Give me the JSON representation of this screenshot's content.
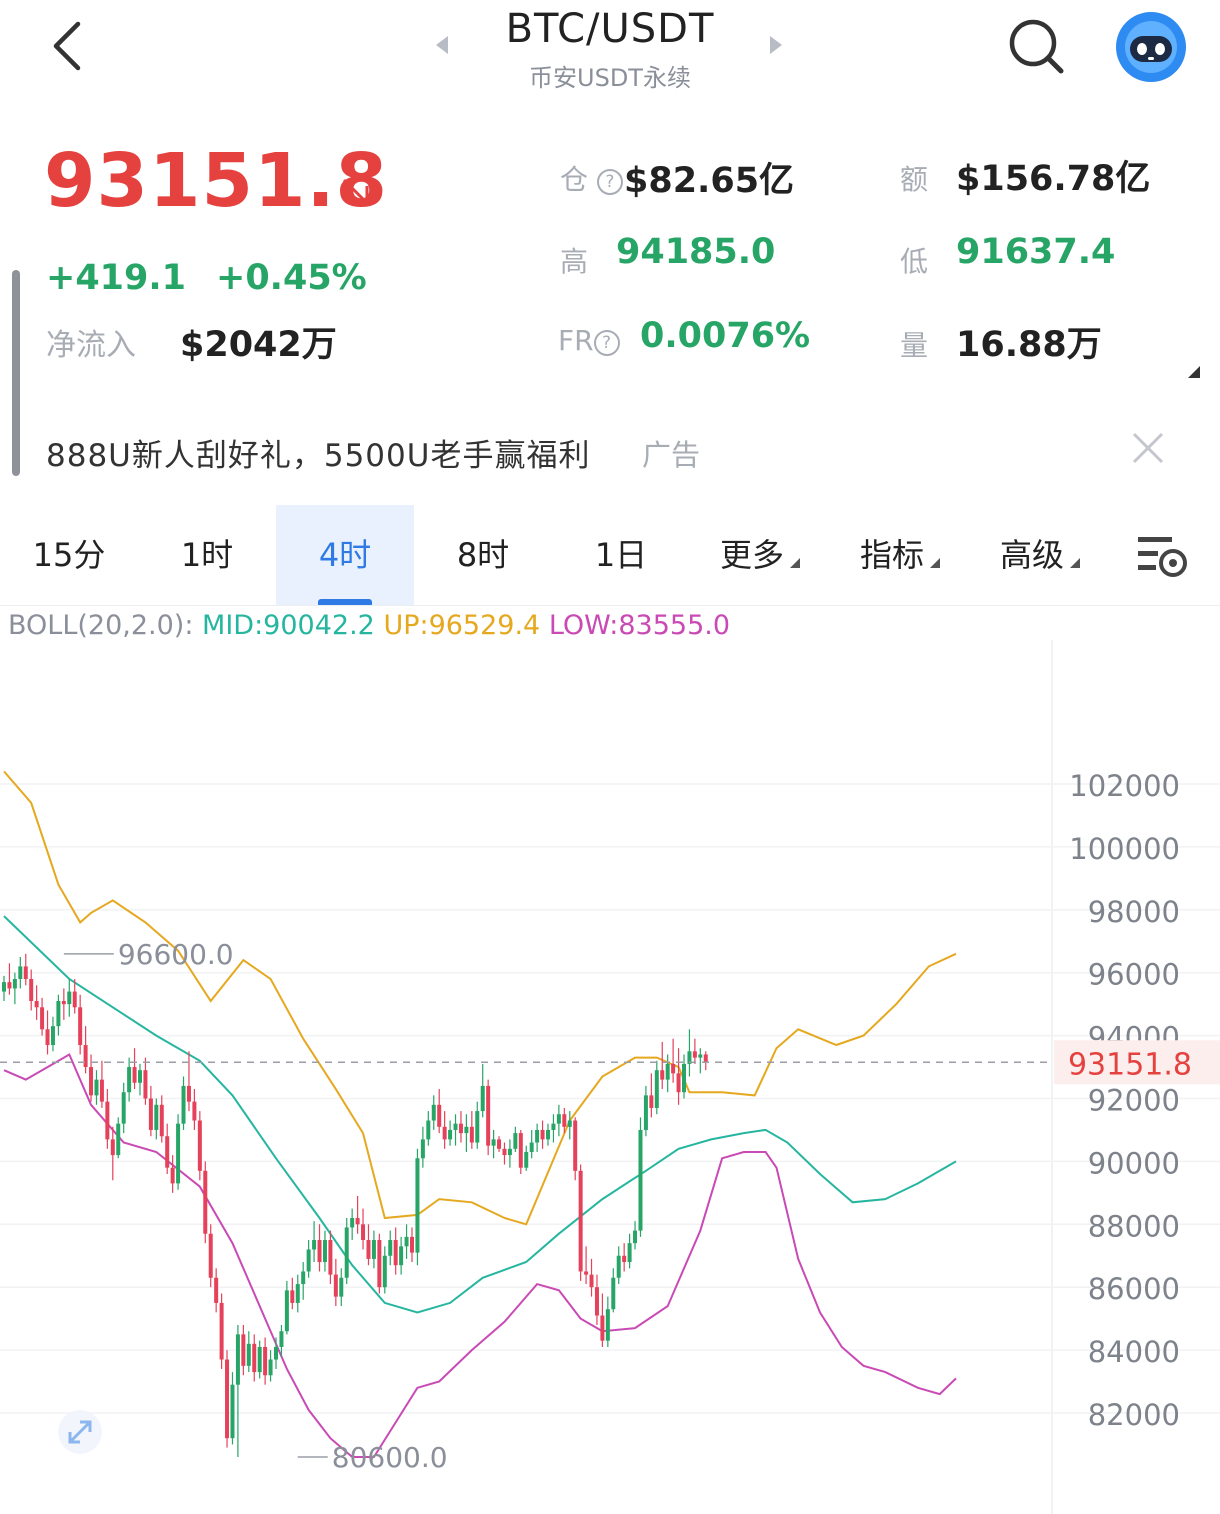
{
  "header": {
    "title": "BTC/USDT",
    "subtitle": "币安USDT永续"
  },
  "ticker": {
    "price": "93151.8",
    "price_direction_icon": "arrow-down-right-icon",
    "change": "+419.1",
    "change_pct": "+0.45%",
    "net_inflow_label": "净流入",
    "net_inflow_value": "$2042万"
  },
  "stats": {
    "open_interest_label": "仓",
    "open_interest_value": "$82.65亿",
    "turnover_label": "额",
    "turnover_value": "$156.78亿",
    "high_label": "高",
    "high_value": "94185.0",
    "low_label": "低",
    "low_value": "91637.4",
    "fr_label": "FR",
    "fr_value": "0.0076%",
    "volume_label": "量",
    "volume_value": "16.88万"
  },
  "ad": {
    "text": "888U新人刮好礼，5500U老手赢福利",
    "tag": "广告"
  },
  "tabs": [
    {
      "label": "15分",
      "active": false
    },
    {
      "label": "1时",
      "active": false
    },
    {
      "label": "4时",
      "active": true
    },
    {
      "label": "8时",
      "active": false
    },
    {
      "label": "1日",
      "active": false
    },
    {
      "label": "更多",
      "active": false
    },
    {
      "label": "指标",
      "active": false
    },
    {
      "label": "高级",
      "active": false
    }
  ],
  "indicator": {
    "name": "BOLL(20,2.0):",
    "mid": "MID:90042.2",
    "up": "UP:96529.4",
    "low": "LOW:83555.0"
  },
  "colors": {
    "up_candle": "#27a567",
    "down_candle": "#e5415a",
    "boll_mid": "#26b6a0",
    "boll_up": "#e5a81e",
    "boll_low": "#c94ab5",
    "price_red": "#e5413f"
  },
  "chart_data": {
    "type": "candlestick",
    "y_ticks": [
      "102000",
      "100000",
      "98000",
      "96000",
      "94000",
      "92000",
      "90000",
      "88000",
      "86000",
      "84000",
      "82000"
    ],
    "ylim": [
      80000,
      104000
    ],
    "current_price_label": "93151.8",
    "current_price": 93151.8,
    "high_marker": {
      "label": "96600.0",
      "value": 96600
    },
    "low_marker": {
      "label": "80600.0",
      "value": 80600
    },
    "candles": [
      [
        95400,
        95900,
        95100,
        95700
      ],
      [
        95700,
        96300,
        95300,
        95500
      ],
      [
        95500,
        96000,
        95000,
        95800
      ],
      [
        95800,
        96500,
        95500,
        96200
      ],
      [
        96200,
        96600,
        95600,
        95800
      ],
      [
        95800,
        96100,
        94800,
        95100
      ],
      [
        95100,
        95600,
        94500,
        94900
      ],
      [
        94900,
        95200,
        94000,
        94200
      ],
      [
        94200,
        94800,
        93400,
        93700
      ],
      [
        93700,
        94600,
        93500,
        94300
      ],
      [
        94300,
        95300,
        94000,
        95100
      ],
      [
        95100,
        95500,
        94500,
        95000
      ],
      [
        95000,
        95800,
        94600,
        95400
      ],
      [
        95400,
        95800,
        94700,
        94900
      ],
      [
        94900,
        95300,
        93400,
        93700
      ],
      [
        93700,
        94300,
        92800,
        93000
      ],
      [
        93000,
        93400,
        91900,
        92100
      ],
      [
        92100,
        92900,
        91800,
        92600
      ],
      [
        92600,
        93200,
        91700,
        91900
      ],
      [
        91900,
        92300,
        90400,
        90700
      ],
      [
        90700,
        91100,
        89400,
        90200
      ],
      [
        90200,
        91400,
        90100,
        91200
      ],
      [
        91200,
        92500,
        90900,
        92200
      ],
      [
        92200,
        93300,
        91900,
        93000
      ],
      [
        93000,
        93600,
        92300,
        92500
      ],
      [
        92500,
        93100,
        92100,
        92900
      ],
      [
        92900,
        93300,
        91800,
        92000
      ],
      [
        92000,
        92400,
        90800,
        91000
      ],
      [
        91000,
        92000,
        90700,
        91800
      ],
      [
        91800,
        92100,
        90600,
        90800
      ],
      [
        90800,
        91200,
        89600,
        89800
      ],
      [
        89800,
        90200,
        89000,
        89300
      ],
      [
        89300,
        91500,
        89100,
        91200
      ],
      [
        91200,
        92700,
        91000,
        92400
      ],
      [
        92400,
        93500,
        91600,
        91900
      ],
      [
        91900,
        92300,
        91000,
        91300
      ],
      [
        91300,
        91600,
        89400,
        89700
      ],
      [
        89700,
        90000,
        87400,
        87700
      ],
      [
        87700,
        88000,
        86000,
        86300
      ],
      [
        86300,
        86600,
        85200,
        85500
      ],
      [
        85500,
        85800,
        83400,
        83700
      ],
      [
        83700,
        84000,
        80900,
        81200
      ],
      [
        81200,
        83300,
        81000,
        82900
      ],
      [
        82900,
        84800,
        80600,
        84500
      ],
      [
        84500,
        84800,
        83200,
        83500
      ],
      [
        83500,
        84600,
        83300,
        84200
      ],
      [
        84200,
        84500,
        83000,
        83300
      ],
      [
        83300,
        84300,
        83100,
        84100
      ],
      [
        84100,
        84400,
        82900,
        83200
      ],
      [
        83200,
        84000,
        83000,
        83700
      ],
      [
        83700,
        84400,
        83400,
        84100
      ],
      [
        84100,
        84800,
        83800,
        84600
      ],
      [
        84600,
        86200,
        84500,
        85900
      ],
      [
        85900,
        86300,
        85300,
        85500
      ],
      [
        85500,
        86400,
        85200,
        86100
      ],
      [
        86100,
        86800,
        85600,
        86500
      ],
      [
        86500,
        87500,
        86300,
        87200
      ],
      [
        87200,
        88100,
        86800,
        87500
      ],
      [
        87500,
        88000,
        86500,
        86800
      ],
      [
        86800,
        87800,
        86500,
        87500
      ],
      [
        87500,
        87800,
        86100,
        86400
      ],
      [
        86400,
        86900,
        85400,
        85700
      ],
      [
        85700,
        86600,
        85400,
        86300
      ],
      [
        86300,
        88200,
        86100,
        87900
      ],
      [
        87900,
        88500,
        87500,
        88200
      ],
      [
        88200,
        88900,
        87700,
        88000
      ],
      [
        88000,
        88500,
        87200,
        87500
      ],
      [
        87500,
        88000,
        86700,
        86900
      ],
      [
        86900,
        87800,
        86600,
        87500
      ],
      [
        87500,
        87700,
        85800,
        86000
      ],
      [
        86000,
        87300,
        85800,
        87000
      ],
      [
        87000,
        87800,
        86700,
        87500
      ],
      [
        87500,
        87900,
        86400,
        86700
      ],
      [
        86700,
        87600,
        86400,
        87300
      ],
      [
        87300,
        88000,
        86900,
        87600
      ],
      [
        87600,
        87900,
        86800,
        87100
      ],
      [
        87100,
        90400,
        86700,
        90100
      ],
      [
        90100,
        91100,
        89800,
        90700
      ],
      [
        90700,
        91600,
        90500,
        91300
      ],
      [
        91300,
        92100,
        91000,
        91800
      ],
      [
        91800,
        92300,
        90900,
        91100
      ],
      [
        91100,
        91600,
        90400,
        90700
      ],
      [
        90700,
        91300,
        90500,
        91000
      ],
      [
        91000,
        91500,
        90500,
        91200
      ],
      [
        91200,
        91600,
        90600,
        90900
      ],
      [
        90900,
        91500,
        90300,
        91100
      ],
      [
        91100,
        91600,
        90400,
        90600
      ],
      [
        90600,
        91900,
        90400,
        91600
      ],
      [
        91600,
        93100,
        91400,
        92400
      ],
      [
        92400,
        92600,
        90200,
        90500
      ],
      [
        90500,
        91000,
        90100,
        90700
      ],
      [
        90700,
        90800,
        90300,
        90400
      ],
      [
        90400,
        90600,
        89900,
        90200
      ],
      [
        90200,
        90700,
        89800,
        90400
      ],
      [
        90400,
        91100,
        90300,
        90900
      ],
      [
        90900,
        91000,
        89600,
        89800
      ],
      [
        89800,
        90500,
        89700,
        90300
      ],
      [
        90300,
        91000,
        90100,
        90600
      ],
      [
        90600,
        91200,
        90300,
        91000
      ],
      [
        91000,
        91300,
        90400,
        90700
      ],
      [
        90700,
        91200,
        90500,
        91000
      ],
      [
        91000,
        91500,
        90600,
        91200
      ],
      [
        91200,
        91800,
        90800,
        91500
      ],
      [
        91500,
        91700,
        90900,
        91100
      ],
      [
        91100,
        91600,
        90700,
        91300
      ],
      [
        91300,
        91400,
        89400,
        89700
      ],
      [
        89700,
        89900,
        86200,
        86500
      ],
      [
        86500,
        87300,
        86100,
        86400
      ],
      [
        86400,
        86900,
        85700,
        86000
      ],
      [
        86000,
        86400,
        84800,
        85100
      ],
      [
        85100,
        85800,
        84100,
        84300
      ],
      [
        84300,
        85700,
        84100,
        85300
      ],
      [
        85300,
        86600,
        85200,
        86300
      ],
      [
        86300,
        87300,
        86100,
        87000
      ],
      [
        87000,
        87400,
        86500,
        86800
      ],
      [
        86800,
        87700,
        86600,
        87400
      ],
      [
        87400,
        88100,
        87200,
        87800
      ],
      [
        87800,
        91400,
        87600,
        91000
      ],
      [
        91000,
        92400,
        90800,
        92100
      ],
      [
        92100,
        92800,
        91400,
        91700
      ],
      [
        91700,
        93200,
        91500,
        92900
      ],
      [
        92900,
        93800,
        92300,
        92600
      ],
      [
        92600,
        93400,
        92200,
        93100
      ],
      [
        93100,
        93900,
        92500,
        92800
      ],
      [
        92800,
        93600,
        91800,
        92200
      ],
      [
        92200,
        93400,
        92000,
        93100
      ],
      [
        93100,
        94200,
        92700,
        93500
      ],
      [
        93500,
        93900,
        93100,
        93300
      ],
      [
        93300,
        93600,
        92800,
        93400
      ],
      [
        93400,
        93500,
        92900,
        93152
      ]
    ],
    "boll_up": [
      [
        0,
        102400
      ],
      [
        5,
        101400
      ],
      [
        10,
        98800
      ],
      [
        14,
        97600
      ],
      [
        16,
        97900
      ],
      [
        20,
        98300
      ],
      [
        26,
        97600
      ],
      [
        32,
        96700
      ],
      [
        38,
        95100
      ],
      [
        44,
        96400
      ],
      [
        49,
        95800
      ],
      [
        55,
        93900
      ],
      [
        61,
        92300
      ],
      [
        66,
        90900
      ],
      [
        70,
        88200
      ],
      [
        76,
        88300
      ],
      [
        80,
        88800
      ],
      [
        86,
        88700
      ],
      [
        92,
        88200
      ],
      [
        96,
        88000
      ],
      [
        104,
        91300
      ],
      [
        110,
        92700
      ],
      [
        116,
        93300
      ],
      [
        120,
        93300
      ],
      [
        124,
        93000
      ],
      [
        126,
        92200
      ],
      [
        132,
        92200
      ],
      [
        138,
        92100
      ],
      [
        142,
        93600
      ],
      [
        146,
        94200
      ],
      [
        153,
        93700
      ],
      [
        158,
        94000
      ],
      [
        164,
        95000
      ],
      [
        170,
        96200
      ],
      [
        175,
        96600
      ]
    ],
    "boll_mid": [
      [
        0,
        97800
      ],
      [
        6,
        96800
      ],
      [
        12,
        95800
      ],
      [
        20,
        94900
      ],
      [
        28,
        94000
      ],
      [
        36,
        93200
      ],
      [
        42,
        92100
      ],
      [
        50,
        90100
      ],
      [
        58,
        88200
      ],
      [
        64,
        86700
      ],
      [
        70,
        85500
      ],
      [
        76,
        85200
      ],
      [
        82,
        85500
      ],
      [
        88,
        86300
      ],
      [
        96,
        86800
      ],
      [
        102,
        87700
      ],
      [
        110,
        88800
      ],
      [
        118,
        89700
      ],
      [
        124,
        90400
      ],
      [
        130,
        90700
      ],
      [
        136,
        90900
      ],
      [
        140,
        91000
      ],
      [
        144,
        90600
      ],
      [
        150,
        89600
      ],
      [
        156,
        88700
      ],
      [
        162,
        88800
      ],
      [
        168,
        89300
      ],
      [
        175,
        90000
      ]
    ],
    "boll_low": [
      [
        0,
        92900
      ],
      [
        4,
        92600
      ],
      [
        8,
        93000
      ],
      [
        12,
        93400
      ],
      [
        16,
        91800
      ],
      [
        22,
        90600
      ],
      [
        28,
        90300
      ],
      [
        36,
        89200
      ],
      [
        42,
        87400
      ],
      [
        48,
        85000
      ],
      [
        52,
        83400
      ],
      [
        56,
        82100
      ],
      [
        60,
        81200
      ],
      [
        64,
        80600
      ],
      [
        68,
        80600
      ],
      [
        72,
        81700
      ],
      [
        76,
        82800
      ],
      [
        80,
        83000
      ],
      [
        86,
        84000
      ],
      [
        92,
        84900
      ],
      [
        98,
        86100
      ],
      [
        102,
        85900
      ],
      [
        106,
        85000
      ],
      [
        110,
        84600
      ],
      [
        116,
        84700
      ],
      [
        122,
        85400
      ],
      [
        128,
        87800
      ],
      [
        132,
        90100
      ],
      [
        136,
        90300
      ],
      [
        140,
        90300
      ],
      [
        142,
        89800
      ],
      [
        146,
        86900
      ],
      [
        150,
        85200
      ],
      [
        154,
        84100
      ],
      [
        158,
        83500
      ],
      [
        162,
        83300
      ],
      [
        168,
        82800
      ],
      [
        172,
        82600
      ],
      [
        175,
        83100
      ]
    ]
  }
}
